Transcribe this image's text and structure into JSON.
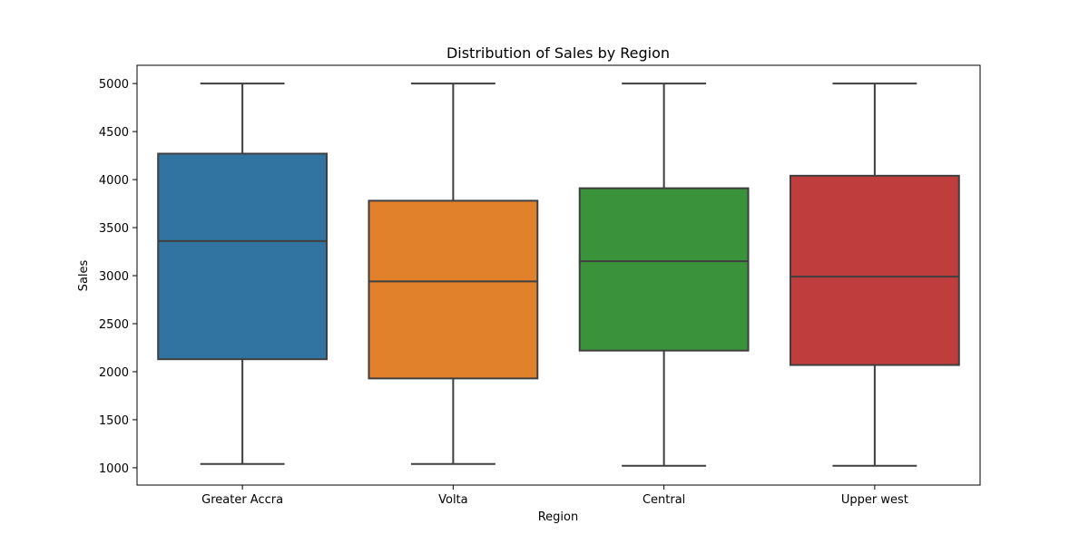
{
  "chart_data": {
    "type": "box",
    "title": "Distribution of Sales by Region",
    "xlabel": "Region",
    "ylabel": "Sales",
    "ylim": [
      820,
      5190
    ],
    "yticks": [
      "1000",
      "1500",
      "2000",
      "2500",
      "3000",
      "3500",
      "4000",
      "4500",
      "5000"
    ],
    "categories": [
      "Greater Accra",
      "Volta",
      "Central",
      "Upper west"
    ],
    "boxes": [
      {
        "category": "Greater Accra",
        "min": 1040,
        "q1": 2130,
        "median": 3360,
        "q3": 4270,
        "max": 5000,
        "color": "#3274a1"
      },
      {
        "category": "Volta",
        "min": 1040,
        "q1": 1930,
        "median": 2940,
        "q3": 3780,
        "max": 5000,
        "color": "#e1812c"
      },
      {
        "category": "Central",
        "min": 1020,
        "q1": 2220,
        "median": 3150,
        "q3": 3910,
        "max": 5000,
        "color": "#3a923a"
      },
      {
        "category": "Upper west",
        "min": 1020,
        "q1": 2070,
        "median": 2990,
        "q3": 4040,
        "max": 5000,
        "color": "#c03d3e"
      }
    ],
    "grid": false,
    "legend": "none"
  }
}
